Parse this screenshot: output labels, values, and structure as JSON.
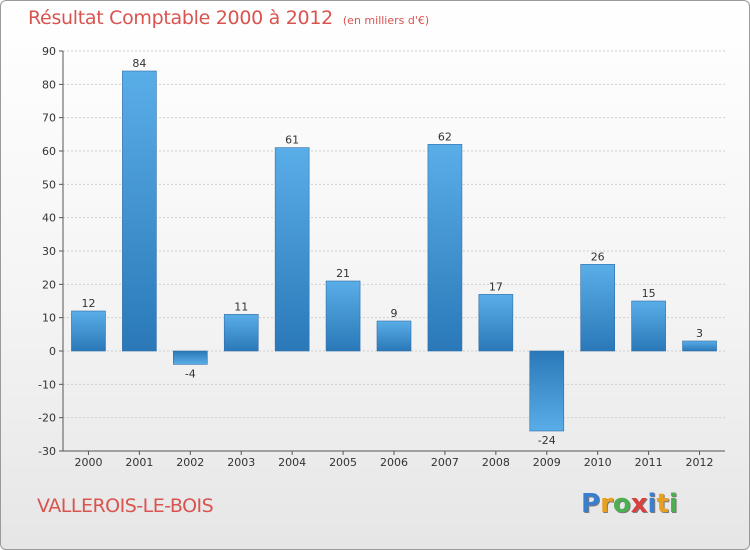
{
  "header": {
    "title": "Résultat Comptable 2000 à 2012",
    "subtitle": "(en milliers d'€)"
  },
  "footer": {
    "commune": "VALLEROIS-LE-BOIS",
    "logo_text": "Proxiti",
    "logo_letters": [
      "P",
      "r",
      "o",
      "x",
      "i",
      "t",
      "i"
    ],
    "logo_colors": [
      "#3a7fcf",
      "#e8a020",
      "#4caf50",
      "#d94040",
      "#3a7fcf",
      "#e8a020",
      "#4caf50"
    ]
  },
  "chart_data": {
    "type": "bar",
    "title": "Résultat Comptable 2000 à 2012",
    "unit": "(en milliers d'€)",
    "categories": [
      "2000",
      "2001",
      "2002",
      "2003",
      "2004",
      "2005",
      "2006",
      "2007",
      "2008",
      "2009",
      "2010",
      "2011",
      "2012"
    ],
    "values": [
      12,
      84,
      -4,
      11,
      61,
      21,
      9,
      62,
      17,
      -24,
      26,
      15,
      3
    ],
    "value_labels": [
      "12",
      "84",
      "-4",
      "11",
      "61",
      "21",
      "9",
      "62",
      "17",
      "-24",
      "26",
      "15",
      "3"
    ],
    "ylim": [
      -30,
      90
    ],
    "yticks": [
      -30,
      -20,
      -10,
      0,
      10,
      20,
      30,
      40,
      50,
      60,
      70,
      80,
      90
    ],
    "ytick_labels": [
      "-30",
      "-20",
      "-10",
      "0",
      "10",
      "20",
      "30",
      "40",
      "50",
      "60",
      "70",
      "80",
      "90"
    ],
    "grid": true,
    "bar_color_light": "#5aaee8",
    "bar_color_dark": "#2a78b8"
  }
}
